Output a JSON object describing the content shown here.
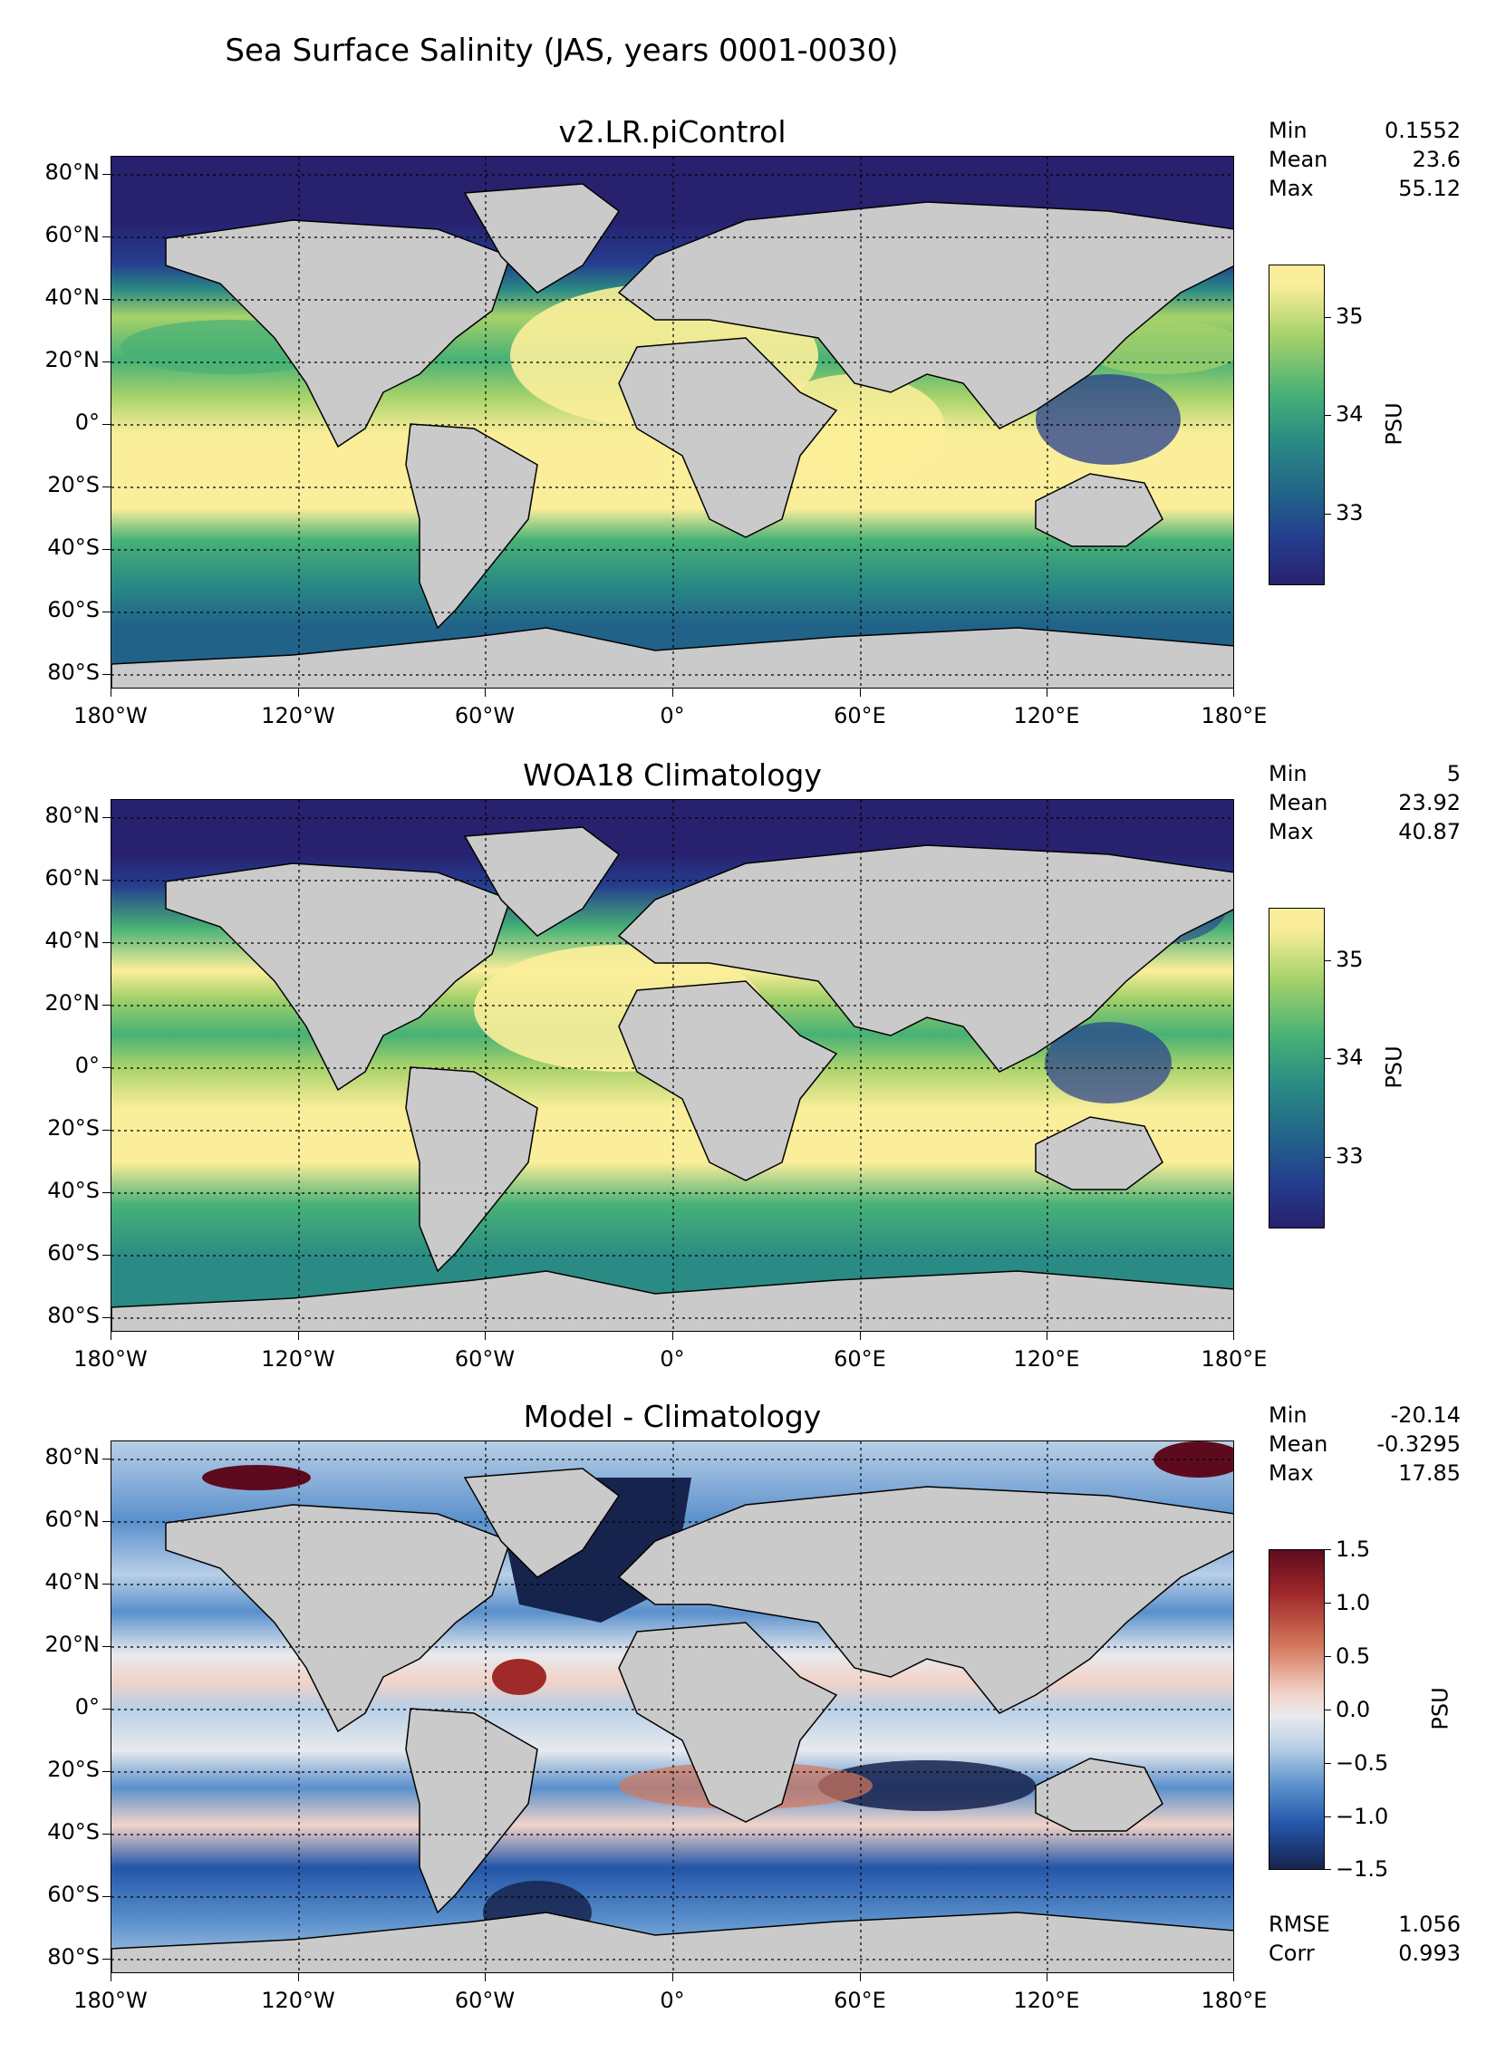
{
  "figure": {
    "title": "Sea Surface Salinity (JAS, years 0001-0030)"
  },
  "axes": {
    "y_ticks": [
      "80°N",
      "60°N",
      "40°N",
      "20°N",
      "0°",
      "20°S",
      "40°S",
      "60°S",
      "80°S"
    ],
    "x_ticks": [
      "180°W",
      "120°W",
      "60°W",
      "0°",
      "60°E",
      "120°E",
      "180°E"
    ]
  },
  "panels": [
    {
      "title": "v2.LR.piControl",
      "stats": {
        "min_label": "Min",
        "min": "0.1552",
        "mean_label": "Mean",
        "mean": "23.6",
        "max_label": "Max",
        "max": "55.12"
      },
      "colorbar": {
        "unit": "PSU",
        "ticks": [
          "35",
          "34",
          "33"
        ],
        "colors": [
          "#fbee9a",
          "#a6d26a",
          "#47b176",
          "#2a8b84",
          "#216289",
          "#253d8f",
          "#27216e"
        ]
      }
    },
    {
      "title": "WOA18 Climatology",
      "stats": {
        "min_label": "Min",
        "min": "5",
        "mean_label": "Mean",
        "mean": "23.92",
        "max_label": "Max",
        "max": "40.87"
      },
      "colorbar": {
        "unit": "PSU",
        "ticks": [
          "35",
          "34",
          "33"
        ],
        "colors": [
          "#fbee9a",
          "#a6d26a",
          "#47b176",
          "#2a8b84",
          "#216289",
          "#253d8f",
          "#27216e"
        ]
      }
    },
    {
      "title": "Model - Climatology",
      "stats": {
        "min_label": "Min",
        "min": "-20.14",
        "mean_label": "Mean",
        "mean": "-0.3295",
        "max_label": "Max",
        "max": "17.85"
      },
      "colorbar": {
        "unit": "PSU",
        "ticks": [
          "1.5",
          "1.0",
          "0.5",
          "0.0",
          "−0.5",
          "−1.0",
          "−1.5"
        ],
        "colors": [
          "#5e0a1e",
          "#a02a2a",
          "#d4775b",
          "#f2d3c8",
          "#e8eaee",
          "#b8cfe6",
          "#5a90cc",
          "#2456a8",
          "#16234d"
        ]
      },
      "metrics": {
        "rmse_label": "RMSE",
        "rmse": "1.056",
        "corr_label": "Corr",
        "corr": "0.993"
      }
    }
  ],
  "map_colors": {
    "land": "#cacaca",
    "coast": "#000000"
  }
}
